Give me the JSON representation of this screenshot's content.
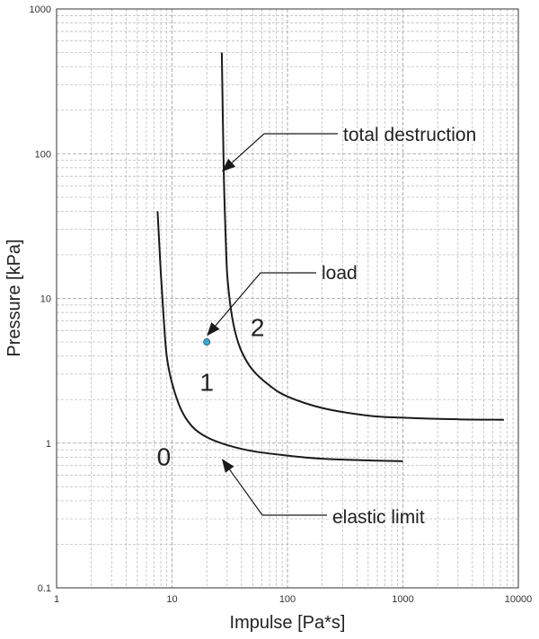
{
  "chart_data": {
    "type": "line",
    "xlabel": "Impulse [Pa*s]",
    "ylabel": "Pressure [kPa]",
    "xscale": "log",
    "yscale": "log",
    "xlim": [
      1,
      10000
    ],
    "ylim": [
      0.1,
      1000
    ],
    "grid": true,
    "x_ticks": [
      {
        "value": 1,
        "label": "1"
      },
      {
        "value": 10,
        "label": "10"
      },
      {
        "value": 100,
        "label": "100"
      },
      {
        "value": 1000,
        "label": "1000"
      },
      {
        "value": 10000,
        "label": "10000"
      }
    ],
    "y_ticks": [
      {
        "value": 0.1,
        "label": "0.1"
      },
      {
        "value": 1,
        "label": "1"
      },
      {
        "value": 10,
        "label": "10"
      },
      {
        "value": 100,
        "label": "100"
      },
      {
        "value": 1000,
        "label": "1000"
      }
    ],
    "series": [
      {
        "points": [
          [
            7.5,
            40
          ],
          [
            8,
            15
          ],
          [
            8.5,
            7
          ],
          [
            9,
            4
          ],
          [
            10,
            2.6
          ],
          [
            12,
            1.7
          ],
          [
            15,
            1.3
          ],
          [
            20,
            1.1
          ],
          [
            30,
            0.97
          ],
          [
            50,
            0.88
          ],
          [
            100,
            0.82
          ],
          [
            200,
            0.78
          ],
          [
            500,
            0.76
          ],
          [
            1000,
            0.75
          ]
        ]
      },
      {
        "points": [
          [
            27,
            500
          ],
          [
            28,
            80
          ],
          [
            29,
            30
          ],
          [
            30,
            15
          ],
          [
            32,
            9
          ],
          [
            35,
            6
          ],
          [
            40,
            4.3
          ],
          [
            50,
            3.2
          ],
          [
            70,
            2.5
          ],
          [
            100,
            2.1
          ],
          [
            200,
            1.75
          ],
          [
            500,
            1.55
          ],
          [
            1000,
            1.5
          ],
          [
            3000,
            1.46
          ],
          [
            7500,
            1.45
          ]
        ]
      }
    ],
    "points": [
      {
        "x": 20,
        "y": 5,
        "color": "#3aa6c8"
      }
    ],
    "annotations": [
      {
        "text": "total destruction",
        "target": [
          27,
          75
        ]
      },
      {
        "text": "load",
        "target": [
          20,
          5.5
        ]
      },
      {
        "text": "elastic limit",
        "target": [
          27,
          0.78
        ]
      }
    ],
    "region_labels": [
      {
        "text": "0",
        "x": 8.5,
        "y": 0.7
      },
      {
        "text": "1",
        "x": 20,
        "y": 2.3
      },
      {
        "text": "2",
        "x": 55,
        "y": 5.5
      }
    ]
  }
}
